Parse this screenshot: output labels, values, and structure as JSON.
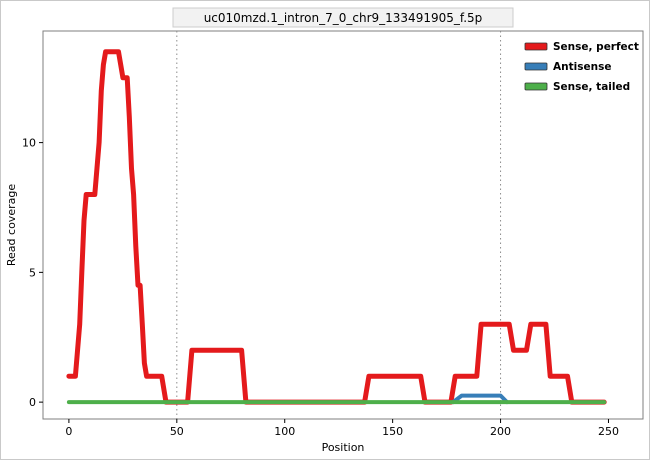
{
  "figure": {
    "background": "#ffffff",
    "panel_border_color": "#7f7f7f",
    "title_strip_fill": "#f2f2f2",
    "title_strip_border": "#cccccc"
  },
  "chart_data": {
    "type": "line",
    "title": "uc010mzd.1_intron_7_0_chr9_133491905_f.5p",
    "xlabel": "Position",
    "ylabel": "Read coverage",
    "xlim": [
      -12,
      266
    ],
    "ylim": [
      -0.65,
      14.3
    ],
    "xticks": [
      0,
      50,
      100,
      150,
      200,
      250
    ],
    "yticks": [
      0,
      5,
      10
    ],
    "grid": false,
    "reference_lines_x": [
      50,
      200
    ],
    "reference_line_style": "dotted",
    "reference_line_color": "#8c8c8c",
    "legend_position": "top-right",
    "series": [
      {
        "name": "Sense, perfect",
        "color": "#e41a1c",
        "width": 5,
        "points": [
          [
            0,
            1
          ],
          [
            3,
            1
          ],
          [
            5,
            3
          ],
          [
            6,
            5
          ],
          [
            7,
            7
          ],
          [
            8,
            8
          ],
          [
            12,
            8
          ],
          [
            14,
            10
          ],
          [
            15,
            12
          ],
          [
            16,
            13
          ],
          [
            17,
            13.5
          ],
          [
            23,
            13.5
          ],
          [
            24,
            13
          ],
          [
            25,
            12.5
          ],
          [
            27,
            12.5
          ],
          [
            28,
            11
          ],
          [
            29,
            9
          ],
          [
            30,
            8
          ],
          [
            31,
            6
          ],
          [
            32,
            4.5
          ],
          [
            33,
            4.5
          ],
          [
            34,
            3
          ],
          [
            35,
            1.5
          ],
          [
            36,
            1
          ],
          [
            43,
            1
          ],
          [
            45,
            0
          ],
          [
            55,
            0
          ],
          [
            57,
            2
          ],
          [
            80,
            2
          ],
          [
            82,
            0
          ],
          [
            137,
            0
          ],
          [
            139,
            1
          ],
          [
            163,
            1
          ],
          [
            165,
            0
          ],
          [
            177,
            0
          ],
          [
            179,
            1
          ],
          [
            189,
            1
          ],
          [
            191,
            3
          ],
          [
            204,
            3
          ],
          [
            206,
            2
          ],
          [
            212,
            2
          ],
          [
            214,
            3
          ],
          [
            221,
            3
          ],
          [
            223,
            1
          ],
          [
            231,
            1
          ],
          [
            233,
            0
          ],
          [
            248,
            0
          ]
        ]
      },
      {
        "name": "Antisense",
        "color": "#377eb8",
        "width": 4,
        "points": [
          [
            178,
            0
          ],
          [
            182,
            0.25
          ],
          [
            200,
            0.25
          ],
          [
            203,
            0
          ]
        ]
      },
      {
        "name": "Sense, tailed",
        "color": "#4daf4a",
        "width": 4,
        "points": [
          [
            0,
            0
          ],
          [
            248,
            0
          ]
        ]
      }
    ]
  }
}
